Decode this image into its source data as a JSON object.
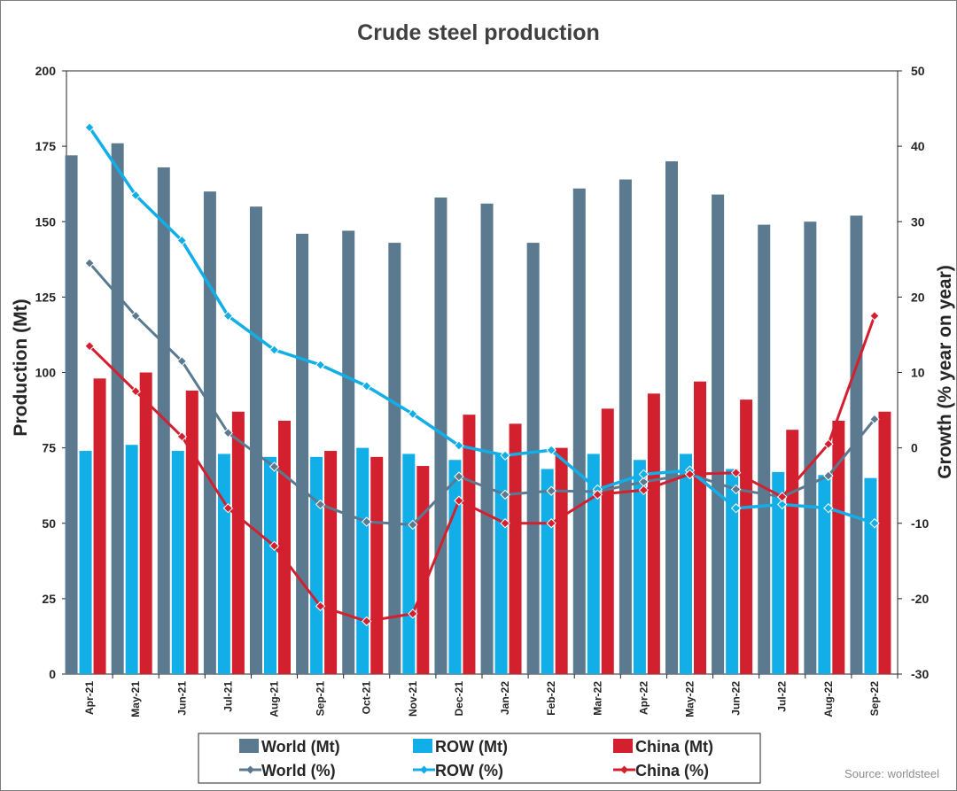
{
  "chart_data": {
    "type": "bar+line",
    "title": "Crude steel production",
    "ylabel_left": "Production (Mt)",
    "ylabel_right": "Growth (% year on year)",
    "ylim_left": [
      0,
      200
    ],
    "yticks_left": [
      "0",
      "25",
      "50",
      "75",
      "100",
      "125",
      "150",
      "175",
      "200"
    ],
    "ylim_right": [
      -30,
      50
    ],
    "yticks_right": [
      "-30",
      "-20",
      "-10",
      "0",
      "10",
      "20",
      "30",
      "40",
      "50"
    ],
    "categories": [
      "Apr-21",
      "May-21",
      "Jun-21",
      "Jul-21",
      "Aug-21",
      "Sep-21",
      "Oct-21",
      "Nov-21",
      "Dec-21",
      "Jan-22",
      "Feb-22",
      "Mar-22",
      "Apr-22",
      "May-22",
      "Jun-22",
      "Jul-22",
      "Aug-22",
      "Sep-22"
    ],
    "bar_series": [
      {
        "name": "World (Mt)",
        "color": "#5b7a90",
        "values": [
          172,
          176,
          168,
          160,
          155,
          146,
          147,
          143,
          158,
          156,
          143,
          161,
          164,
          170,
          159,
          149,
          150,
          152
        ]
      },
      {
        "name": "ROW (Mt)",
        "color": "#12aee8",
        "values": [
          74,
          76,
          74,
          73,
          72,
          72,
          75,
          73,
          71,
          73,
          68,
          73,
          71,
          73,
          68,
          67,
          66,
          65
        ]
      },
      {
        "name": "China (Mt)",
        "color": "#d3202f",
        "values": [
          98,
          100,
          94,
          87,
          84,
          74,
          72,
          69,
          86,
          83,
          75,
          88,
          93,
          97,
          91,
          81,
          84,
          87
        ]
      }
    ],
    "line_series": [
      {
        "name": "World (%)",
        "color": "#5b7a90",
        "values": [
          24.5,
          17.5,
          11.5,
          2,
          -2.5,
          -7.5,
          -9.8,
          -10.2,
          -3.8,
          -6.2,
          -5.7,
          -5.8,
          -4.5,
          -3.5,
          -5.5,
          -6.5,
          -3.7,
          3.8
        ]
      },
      {
        "name": "ROW (%)",
        "color": "#12aee8",
        "values": [
          42.5,
          33.5,
          27.5,
          17.5,
          13,
          11,
          8.2,
          4.5,
          0.3,
          -1,
          -0.3,
          -5.5,
          -3.5,
          -3,
          -8,
          -7.5,
          -8,
          -10
        ]
      },
      {
        "name": "China (%)",
        "color": "#d3202f",
        "values": [
          13.5,
          7.5,
          1.5,
          -8,
          -13,
          -21,
          -23,
          -22,
          -7,
          -10,
          -10,
          -6.2,
          -5.6,
          -3.5,
          -3.3,
          -6.5,
          0.5,
          17.5
        ]
      }
    ],
    "legend_position": "bottom",
    "grid": false
  },
  "source": "Source: worldsteel"
}
